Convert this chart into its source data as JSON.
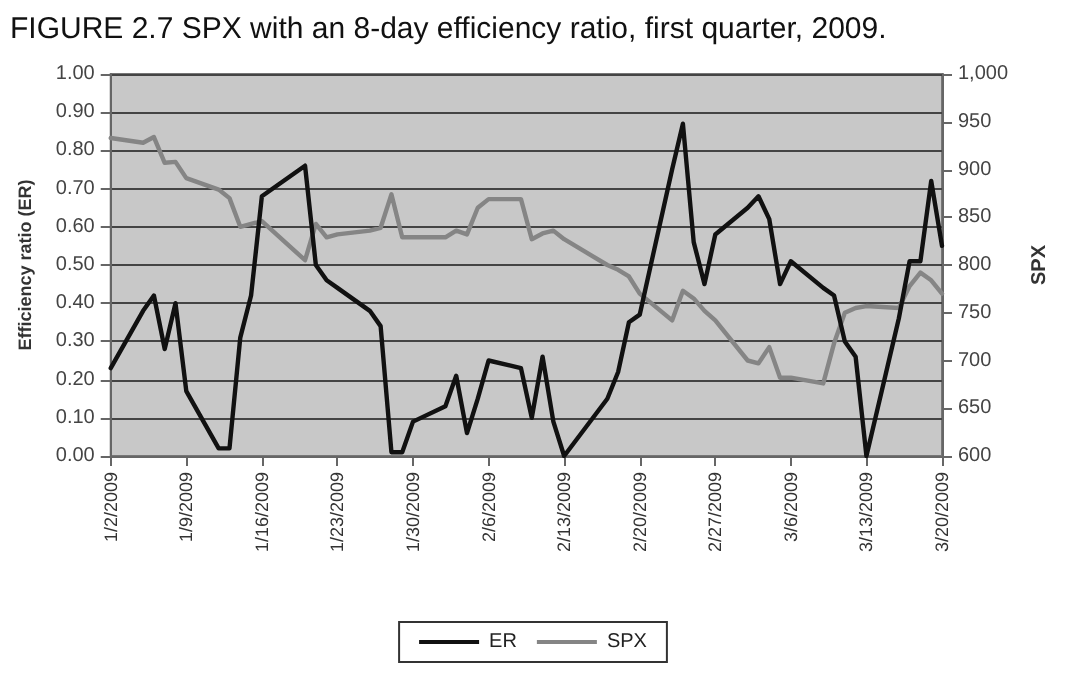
{
  "chart_data": {
    "type": "line",
    "title": "FIGURE 2.7 SPX with an 8-day efficiency ratio, first quarter, 2009.",
    "ylabel": "Efficiency ratio (ER)",
    "y2label": "SPX",
    "series": [
      {
        "name": "ER",
        "color": "#111111",
        "x": [
          "2009-01-02",
          "2009-01-05",
          "2009-01-06",
          "2009-01-07",
          "2009-01-08",
          "2009-01-09",
          "2009-01-12",
          "2009-01-13",
          "2009-01-14",
          "2009-01-15",
          "2009-01-16",
          "2009-01-20",
          "2009-01-21",
          "2009-01-22",
          "2009-01-23",
          "2009-01-26",
          "2009-01-27",
          "2009-01-28",
          "2009-01-29",
          "2009-01-30",
          "2009-02-02",
          "2009-02-03",
          "2009-02-04",
          "2009-02-05",
          "2009-02-06",
          "2009-02-09",
          "2009-02-10",
          "2009-02-11",
          "2009-02-12",
          "2009-02-13",
          "2009-02-17",
          "2009-02-18",
          "2009-02-19",
          "2009-02-20",
          "2009-02-23",
          "2009-02-24",
          "2009-02-25",
          "2009-02-26",
          "2009-02-27",
          "2009-03-02",
          "2009-03-03",
          "2009-03-04",
          "2009-03-05",
          "2009-03-06",
          "2009-03-09",
          "2009-03-10",
          "2009-03-11",
          "2009-03-12",
          "2009-03-13",
          "2009-03-16",
          "2009-03-17",
          "2009-03-18",
          "2009-03-19",
          "2009-03-20"
        ],
        "values": [
          0.23,
          0.38,
          0.42,
          0.28,
          0.4,
          0.17,
          0.02,
          0.02,
          0.31,
          0.42,
          0.68,
          0.76,
          0.5,
          0.46,
          0.44,
          0.38,
          0.34,
          0.01,
          0.01,
          0.09,
          0.13,
          0.21,
          0.06,
          0.15,
          0.25,
          0.23,
          0.1,
          0.26,
          0.09,
          0.0,
          0.15,
          0.22,
          0.35,
          0.37,
          0.75,
          0.87,
          0.56,
          0.45,
          0.58,
          0.65,
          0.68,
          0.62,
          0.45,
          0.51,
          0.44,
          0.42,
          0.3,
          0.26,
          0.0,
          0.36,
          0.51,
          0.51,
          0.72,
          0.55
        ]
      },
      {
        "name": "SPX",
        "color": "#858585",
        "axis": "y2",
        "x": [
          "2009-01-02",
          "2009-01-05",
          "2009-01-06",
          "2009-01-07",
          "2009-01-08",
          "2009-01-09",
          "2009-01-12",
          "2009-01-13",
          "2009-01-14",
          "2009-01-15",
          "2009-01-16",
          "2009-01-20",
          "2009-01-21",
          "2009-01-22",
          "2009-01-23",
          "2009-01-26",
          "2009-01-27",
          "2009-01-28",
          "2009-01-29",
          "2009-01-30",
          "2009-02-02",
          "2009-02-03",
          "2009-02-04",
          "2009-02-05",
          "2009-02-06",
          "2009-02-09",
          "2009-02-10",
          "2009-02-11",
          "2009-02-12",
          "2009-02-13",
          "2009-02-17",
          "2009-02-18",
          "2009-02-19",
          "2009-02-20",
          "2009-02-23",
          "2009-02-24",
          "2009-02-25",
          "2009-02-26",
          "2009-02-27",
          "2009-03-02",
          "2009-03-03",
          "2009-03-04",
          "2009-03-05",
          "2009-03-06",
          "2009-03-09",
          "2009-03-10",
          "2009-03-11",
          "2009-03-12",
          "2009-03-13",
          "2009-03-16",
          "2009-03-17",
          "2009-03-18",
          "2009-03-19",
          "2009-03-20"
        ],
        "values": [
          933,
          928,
          934,
          907,
          908,
          891,
          879,
          870,
          840,
          843,
          846,
          805,
          843,
          829,
          832,
          836,
          839,
          874,
          829,
          829,
          829,
          836,
          832,
          860,
          869,
          869,
          827,
          833,
          836,
          827,
          800,
          795,
          788,
          770,
          742,
          773,
          765,
          752,
          742,
          700,
          697,
          714,
          682,
          682,
          676,
          718,
          750,
          755,
          757,
          755,
          778,
          792,
          784,
          770
        ]
      }
    ],
    "xlim": [
      "2009-01-02",
      "2009-03-20"
    ],
    "xticks": [
      {
        "value": "2009-01-02",
        "label": "1/2/2009"
      },
      {
        "value": "2009-01-09",
        "label": "1/9/2009"
      },
      {
        "value": "2009-01-16",
        "label": "1/16/2009"
      },
      {
        "value": "2009-01-23",
        "label": "1/23/2009"
      },
      {
        "value": "2009-01-30",
        "label": "1/30/2009"
      },
      {
        "value": "2009-02-06",
        "label": "2/6/2009"
      },
      {
        "value": "2009-02-13",
        "label": "2/13/2009"
      },
      {
        "value": "2009-02-20",
        "label": "2/20/2009"
      },
      {
        "value": "2009-02-27",
        "label": "2/27/2009"
      },
      {
        "value": "2009-03-06",
        "label": "3/6/2009"
      },
      {
        "value": "2009-03-13",
        "label": "3/13/2009"
      },
      {
        "value": "2009-03-20",
        "label": "3/20/2009"
      }
    ],
    "ylim": [
      0,
      1
    ],
    "yticks": [
      {
        "value": 0,
        "label": "0.00"
      },
      {
        "value": 0.1,
        "label": "0.10"
      },
      {
        "value": 0.2,
        "label": "0.20"
      },
      {
        "value": 0.3,
        "label": "0.30"
      },
      {
        "value": 0.4,
        "label": "0.40"
      },
      {
        "value": 0.5,
        "label": "0.50"
      },
      {
        "value": 0.6,
        "label": "0.60"
      },
      {
        "value": 0.7,
        "label": "0.70"
      },
      {
        "value": 0.8,
        "label": "0.80"
      },
      {
        "value": 0.9,
        "label": "0.90"
      },
      {
        "value": 1,
        "label": "1.00"
      }
    ],
    "y2lim": [
      600,
      1000
    ],
    "y2ticks": [
      600,
      650,
      700,
      750,
      800,
      850,
      900,
      950,
      {
        "value": 1000,
        "label": "1,000"
      }
    ],
    "grid": "y",
    "legend": "bottom",
    "marker": "none",
    "line_style": "solid"
  }
}
